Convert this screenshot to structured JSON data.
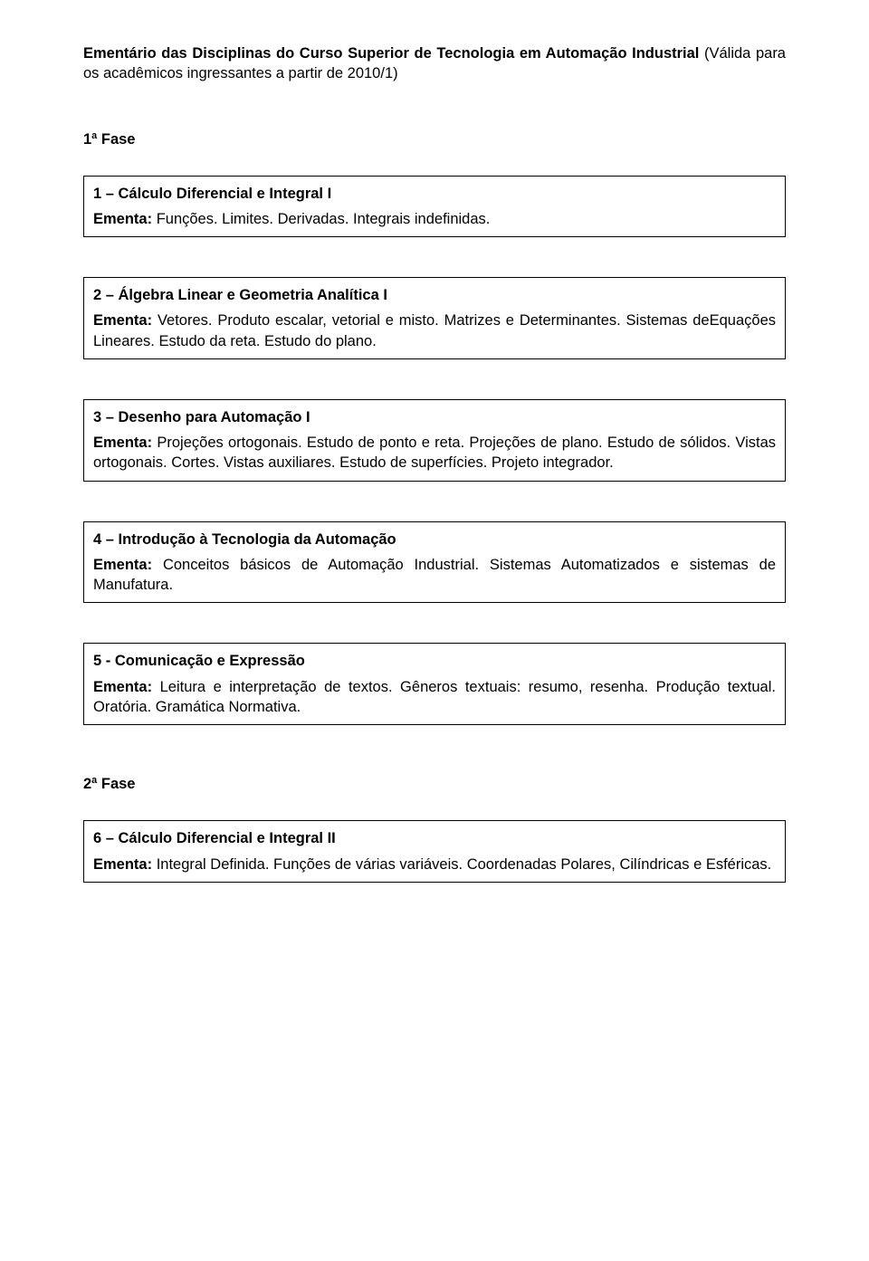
{
  "title_bold": "Ementário das Disciplinas do Curso Superior de Tecnologia em Automação Industrial ",
  "title_rest": "(Válida para os acadêmicos ingressantes a partir de 2010/1)",
  "phase1": "1ª Fase",
  "ementa_label": "Ementa: ",
  "courses": [
    {
      "title": "1 – Cálculo Diferencial e Integral I",
      "ementa": "Funções. Limites. Derivadas. Integrais indefinidas."
    },
    {
      "title": "2 – Álgebra Linear e Geometria Analítica I",
      "ementa": "Vetores. Produto escalar, vetorial e misto. Matrizes e Determinantes. Sistemas deEquações Lineares. Estudo da reta. Estudo do plano."
    },
    {
      "title": "3 – Desenho para Automação I",
      "ementa": "Projeções ortogonais. Estudo de ponto e reta. Projeções de plano. Estudo de sólidos. Vistas ortogonais. Cortes. Vistas auxiliares. Estudo de superfícies. Projeto integrador."
    },
    {
      "title": "4 – Introdução à Tecnologia da Automação",
      "ementa": "Conceitos básicos de Automação Industrial. Sistemas Automatizados e sistemas de Manufatura."
    },
    {
      "title": "5 - Comunicação e Expressão",
      "ementa": "Leitura e interpretação de textos. Gêneros textuais: resumo, resenha. Produção textual. Oratória. Gramática Normativa."
    }
  ],
  "phase2": "2ª Fase",
  "course6": {
    "title": "6 – Cálculo Diferencial e Integral II",
    "ementa": "Integral Definida. Funções de várias variáveis. Coordenadas Polares, Cilíndricas e Esféricas."
  }
}
